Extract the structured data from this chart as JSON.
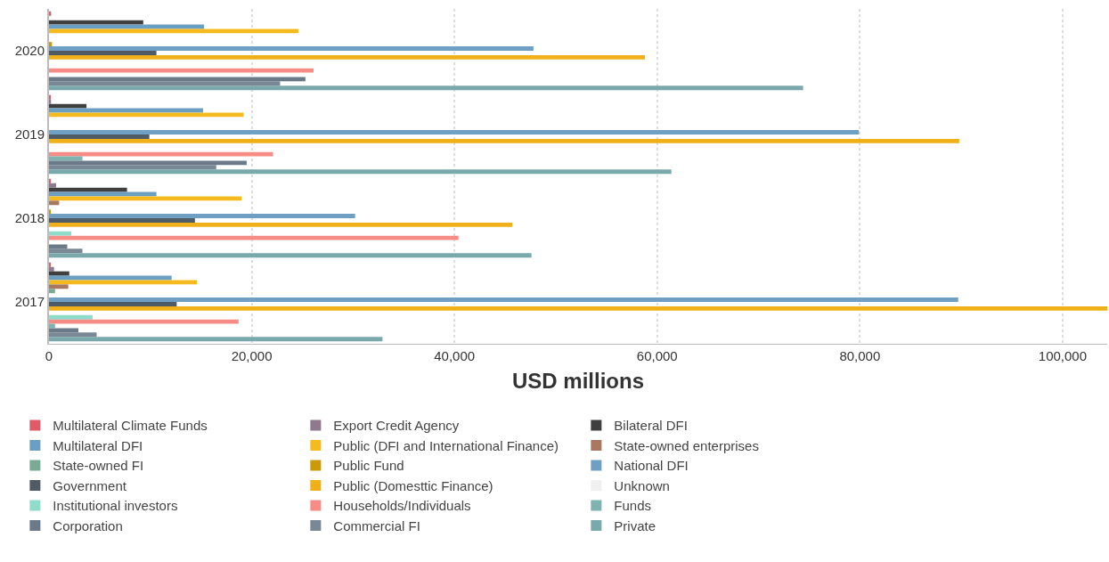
{
  "chart_data": {
    "type": "bar",
    "orientation": "horizontal",
    "xlabel": "USD millions",
    "categories": [
      "2020",
      "2019",
      "2018",
      "2017"
    ],
    "xlim": [
      0,
      104400
    ],
    "xticks": [
      {
        "value": 0,
        "label": "0"
      },
      {
        "value": 20000,
        "label": "20,000"
      },
      {
        "value": 40000,
        "label": "40,000"
      },
      {
        "value": 60000,
        "label": "60,000"
      },
      {
        "value": 80000,
        "label": "80,000"
      },
      {
        "value": 100000,
        "label": "100,000"
      }
    ],
    "grid": "x",
    "legend": "bottom",
    "series": [
      {
        "name": "Multilateral Climate Funds",
        "color": "#e05a6a",
        "values": [
          200,
          100,
          100,
          100
        ]
      },
      {
        "name": "Export Credit Agency",
        "color": "#8e7a8c",
        "values": [
          null,
          200,
          700,
          500
        ]
      },
      {
        "name": "Bilateral DFI",
        "color": "#3f3f3f",
        "values": [
          9300,
          3700,
          7700,
          2000
        ]
      },
      {
        "name": "Multilateral DFI",
        "color": "#6a9ec2",
        "values": [
          15300,
          15200,
          10600,
          12100
        ]
      },
      {
        "name": "Public (DFI and International Finance)",
        "color": "#f5bb1e",
        "values": [
          24600,
          19200,
          19000,
          14600
        ]
      },
      {
        "name": "State-owned enterprises",
        "color": "#a87860",
        "values": [
          null,
          null,
          1000,
          1900
        ]
      },
      {
        "name": "State-owned FI",
        "color": "#7aaa96",
        "values": [
          null,
          null,
          null,
          600
        ]
      },
      {
        "name": "Public Fund",
        "color": "#cc9a06",
        "values": [
          300,
          null,
          100,
          null
        ]
      },
      {
        "name": "National DFI",
        "color": "#6fa0c4",
        "values": [
          47800,
          79900,
          30200,
          89700
        ]
      },
      {
        "name": "Government",
        "color": "#4f5c66",
        "values": [
          10600,
          9900,
          14400,
          12600
        ]
      },
      {
        "name": "Public (Domesttic Finance)",
        "color": "#f0b01a",
        "values": [
          58800,
          89800,
          45700,
          104400
        ]
      },
      {
        "name": "Unknown",
        "color": "#f0f0f0",
        "values": [
          null,
          null,
          null,
          null
        ]
      },
      {
        "name": "Institutional investors",
        "color": "#90dccb",
        "values": [
          null,
          null,
          2200,
          4300
        ]
      },
      {
        "name": "Households/Individuals",
        "color": "#f78c86",
        "values": [
          26100,
          22100,
          40400,
          18700
        ]
      },
      {
        "name": "Funds",
        "color": "#7fb3b0",
        "values": [
          null,
          3300,
          null,
          600
        ]
      },
      {
        "name": "Corporation",
        "color": "#6a7a88",
        "values": [
          25300,
          19500,
          1800,
          2900
        ]
      },
      {
        "name": "Commercial FI",
        "color": "#7a8794",
        "values": [
          22800,
          16500,
          3300,
          4700
        ]
      },
      {
        "name": "Private",
        "color": "#79a9aa",
        "values": [
          74400,
          61400,
          47600,
          32900
        ]
      }
    ]
  }
}
